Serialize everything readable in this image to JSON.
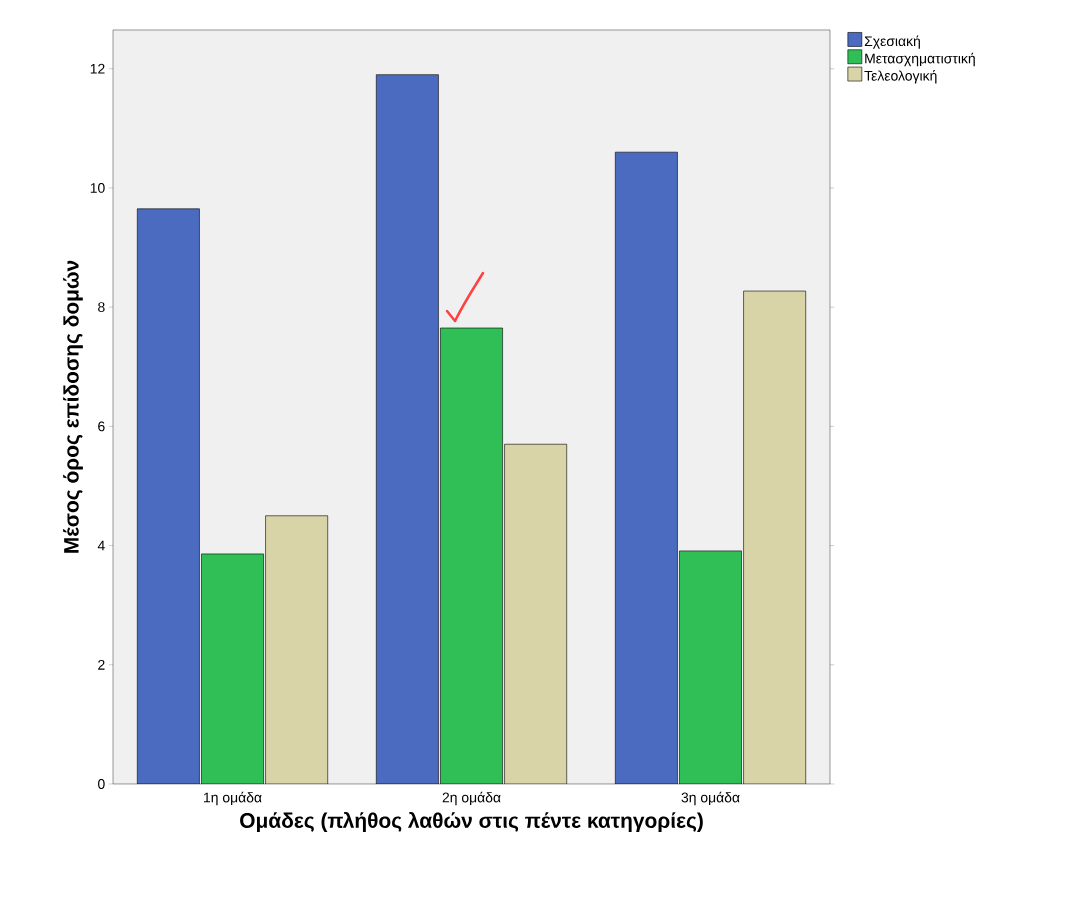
{
  "chart_data": {
    "type": "bar",
    "xlabel": "Ομάδες (πλήθος λαθών στις πέντε κατηγορίες)",
    "ylabel": "Μέσος όρος επίδοσης δομών",
    "categories": [
      "1η ομάδα",
      "2η ομάδα",
      "3η ομάδα"
    ],
    "series": [
      {
        "name": "Σχεσιακή",
        "color": "#4a6bbf",
        "values": [
          9.65,
          11.9,
          10.6
        ]
      },
      {
        "name": "Μετασχηματιστική",
        "color": "#2fbf56",
        "values": [
          3.86,
          7.65,
          3.91
        ]
      },
      {
        "name": "Τελεολογική",
        "color": "#d9d4a8",
        "values": [
          4.5,
          5.7,
          8.27
        ]
      }
    ],
    "ylim": [
      0,
      12.65
    ],
    "yticks": [
      0,
      2,
      4,
      6,
      8,
      10,
      12
    ],
    "grid": false,
    "legend": "top right"
  }
}
